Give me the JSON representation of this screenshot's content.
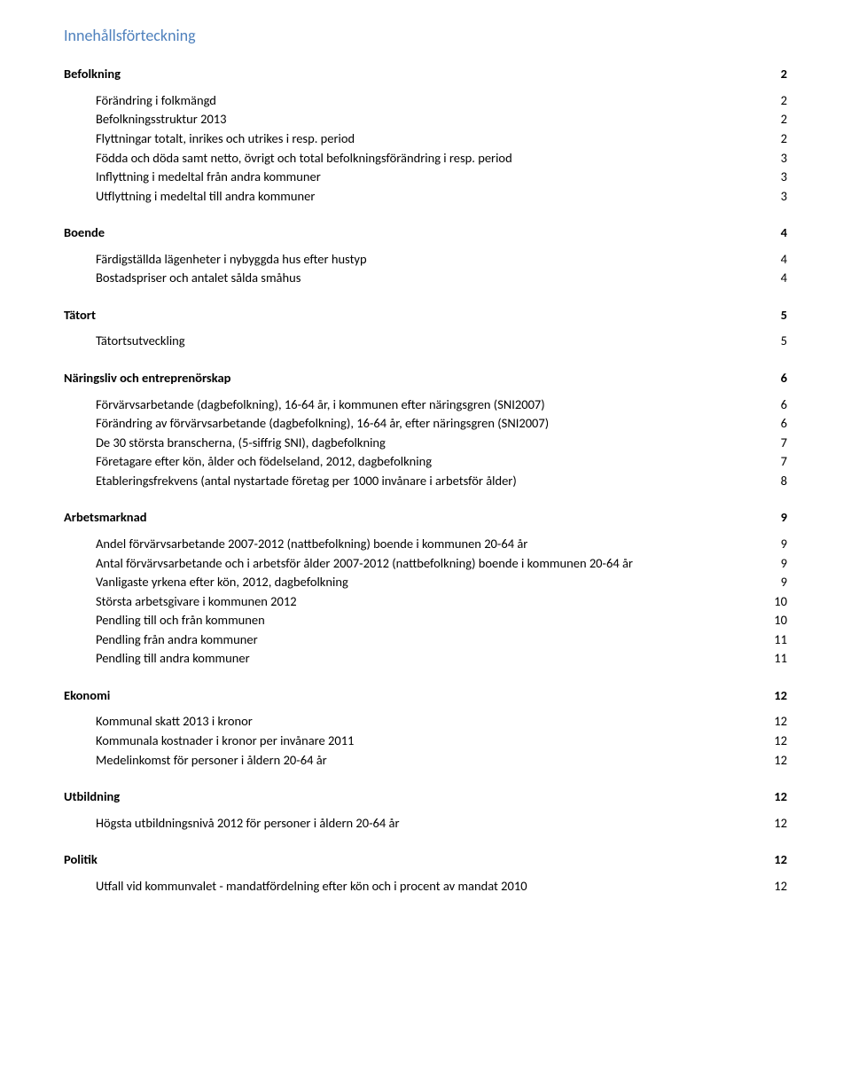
{
  "title": "Innehållsförteckning",
  "sections": [
    {
      "heading": "Befolkning",
      "page": "2",
      "items": [
        {
          "label": "Förändring i folkmängd",
          "page": "2"
        },
        {
          "label": "Befolkningsstruktur 2013",
          "page": "2"
        },
        {
          "label": "Flyttningar totalt, inrikes och utrikes i resp. period",
          "page": "2"
        },
        {
          "label": "Födda och döda samt netto, övrigt och total befolkningsförändring i resp. period",
          "page": "3"
        },
        {
          "label": "Inflyttning i medeltal från andra kommuner",
          "page": "3"
        },
        {
          "label": "Utflyttning i medeltal till andra kommuner",
          "page": "3"
        }
      ]
    },
    {
      "heading": "Boende",
      "page": "4",
      "items": [
        {
          "label": "Färdigställda lägenheter i nybyggda hus efter hustyp",
          "page": "4"
        },
        {
          "label": "Bostadspriser och antalet sålda småhus",
          "page": "4"
        }
      ]
    },
    {
      "heading": "Tätort",
      "page": "5",
      "items": [
        {
          "label": "Tätortsutveckling",
          "page": "5"
        }
      ]
    },
    {
      "heading": "Näringsliv och entreprenörskap",
      "page": "6",
      "items": [
        {
          "label": "Förvärvsarbetande (dagbefolkning), 16-64 år, i kommunen efter näringsgren (SNI2007)",
          "page": "6"
        },
        {
          "label": "Förändring av förvärvsarbetande (dagbefolkning), 16-64 år, efter näringsgren (SNI2007)",
          "page": "6"
        },
        {
          "label": "De 30 största branscherna, (5-siffrig SNI), dagbefolkning",
          "page": "7"
        },
        {
          "label": "Företagare efter kön, ålder och födelseland, 2012, dagbefolkning",
          "page": "7"
        },
        {
          "label": "Etableringsfrekvens (antal nystartade företag per 1000 invånare i arbetsför ålder)",
          "page": "8"
        }
      ]
    },
    {
      "heading": "Arbetsmarknad",
      "page": "9",
      "items": [
        {
          "label": "Andel förvärvsarbetande 2007-2012 (nattbefolkning) boende i kommunen 20-64 år",
          "page": "9"
        },
        {
          "label": "Antal förvärvsarbetande och i arbetsför ålder 2007-2012 (nattbefolkning) boende i kommunen 20-64 år",
          "page": "9"
        },
        {
          "label": "Vanligaste yrkena efter kön, 2012, dagbefolkning",
          "page": "9"
        },
        {
          "label": "Största arbetsgivare i kommunen 2012",
          "page": "10"
        },
        {
          "label": "Pendling till och från kommunen",
          "page": "10"
        },
        {
          "label": "Pendling från andra kommuner",
          "page": "11"
        },
        {
          "label": "Pendling till andra kommuner",
          "page": "11"
        }
      ]
    },
    {
      "heading": "Ekonomi",
      "page": "12",
      "items": [
        {
          "label": "Kommunal skatt 2013 i kronor",
          "page": "12"
        },
        {
          "label": "Kommunala kostnader i kronor per invånare 2011",
          "page": "12"
        },
        {
          "label": "Medelinkomst för personer i åldern 20-64 år",
          "page": "12"
        }
      ]
    },
    {
      "heading": "Utbildning",
      "page": "12",
      "items": [
        {
          "label": "Högsta utbildningsnivå 2012 för personer i åldern 20-64 år",
          "page": "12"
        }
      ]
    },
    {
      "heading": "Politik",
      "page": "12",
      "items": [
        {
          "label": "Utfall vid kommunvalet - mandatfördelning efter kön och i procent av mandat 2010",
          "page": "12"
        }
      ]
    }
  ]
}
